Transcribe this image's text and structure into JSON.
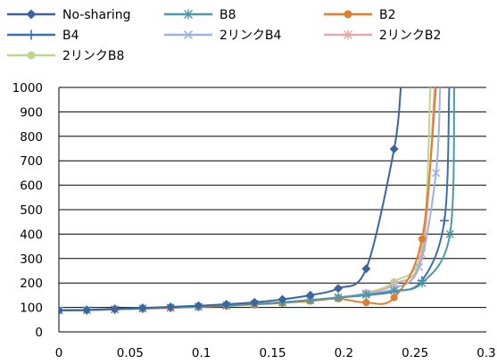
{
  "chart_data": {
    "type": "line",
    "title": "",
    "xlabel": "",
    "ylabel": "",
    "xlim": [
      0,
      0.3
    ],
    "ylim": [
      0,
      1000
    ],
    "x_ticks": [
      "0",
      "0.05",
      "0.1",
      "0.15",
      "0.2",
      "0.25",
      "0.3"
    ],
    "y_ticks": [
      "0",
      "100",
      "200",
      "300",
      "400",
      "500",
      "600",
      "700",
      "800",
      "900",
      "1000"
    ],
    "grid": "horizontal",
    "legend_position": "top",
    "series": [
      {
        "name": "No-sharing",
        "color": "#3b64a0",
        "marker": "diamond",
        "x": [
          0,
          0.0196,
          0.0392,
          0.0588,
          0.0784,
          0.098,
          0.1176,
          0.1373,
          0.1569,
          0.1765,
          0.1961,
          0.2157,
          0.2353,
          0.24
        ],
        "y": [
          88,
          90,
          94,
          98,
          102,
          107,
          113,
          121,
          133,
          150,
          178,
          258,
          748,
          1000
        ]
      },
      {
        "name": "B8",
        "color": "#4a9aaa",
        "marker": "asterisk",
        "x": [
          0,
          0.0196,
          0.0392,
          0.0588,
          0.0784,
          0.098,
          0.1176,
          0.1373,
          0.1569,
          0.1765,
          0.1961,
          0.2157,
          0.2353,
          0.2549,
          0.2745,
          0.2775
        ],
        "y": [
          88,
          89,
          92,
          96,
          99,
          103,
          108,
          114,
          121,
          130,
          140,
          152,
          168,
          200,
          400,
          1000
        ]
      },
      {
        "name": "B2",
        "color": "#e07d2a",
        "marker": "circle",
        "x": [
          0,
          0.0196,
          0.0392,
          0.0588,
          0.0784,
          0.098,
          0.1176,
          0.1373,
          0.1569,
          0.1765,
          0.1961,
          0.2157,
          0.2353,
          0.2549,
          0.2647
        ],
        "y": [
          88,
          89,
          92,
          95,
          98,
          102,
          106,
          112,
          118,
          126,
          136,
          120,
          140,
          380,
          1000
        ]
      },
      {
        "name": "B4",
        "color": "#3b6eb5",
        "marker": "plus",
        "x": [
          0,
          0.0196,
          0.0392,
          0.0588,
          0.0784,
          0.098,
          0.1176,
          0.1373,
          0.1569,
          0.1765,
          0.1961,
          0.2157,
          0.2353,
          0.2549,
          0.2706,
          0.274
        ],
        "y": [
          88,
          89,
          92,
          96,
          99,
          103,
          108,
          114,
          121,
          130,
          140,
          150,
          165,
          210,
          455,
          1000
        ]
      },
      {
        "name": "2リンクB4",
        "color": "#9db3dc",
        "marker": "x",
        "x": [
          0,
          0.0196,
          0.0392,
          0.0588,
          0.0784,
          0.098,
          0.1176,
          0.1373,
          0.1569,
          0.1765,
          0.1961,
          0.2157,
          0.2353,
          0.2529,
          0.2647,
          0.2676
        ],
        "y": [
          88,
          89,
          92,
          96,
          99,
          103,
          108,
          114,
          121,
          130,
          141,
          155,
          178,
          265,
          650,
          1000
        ]
      },
      {
        "name": "2リンクB2",
        "color": "#e0a9a9",
        "marker": "asterisk",
        "x": [
          0,
          0.0196,
          0.0392,
          0.0588,
          0.0784,
          0.098,
          0.1176,
          0.1373,
          0.1569,
          0.1765,
          0.1961,
          0.2157,
          0.2353,
          0.2549,
          0.2637
        ],
        "y": [
          88,
          89,
          92,
          96,
          99,
          103,
          108,
          114,
          121,
          130,
          141,
          158,
          195,
          320,
          1000
        ]
      },
      {
        "name": "2リンクB8",
        "color": "#bcd68f",
        "marker": "circle",
        "x": [
          0,
          0.0196,
          0.0392,
          0.0588,
          0.0784,
          0.098,
          0.1176,
          0.1373,
          0.1569,
          0.1765,
          0.1961,
          0.2157,
          0.2353,
          0.2549,
          0.2608
        ],
        "y": [
          88,
          89,
          92,
          96,
          99,
          103,
          108,
          114,
          121,
          130,
          142,
          160,
          205,
          340,
          1000
        ]
      }
    ]
  }
}
